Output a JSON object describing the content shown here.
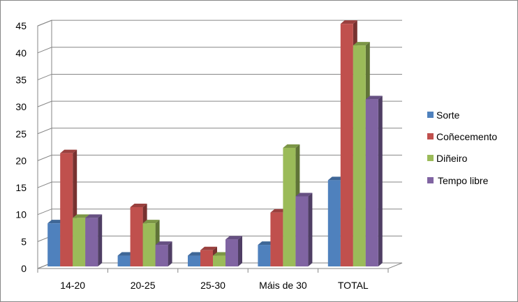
{
  "chart_data": {
    "type": "bar",
    "categories": [
      "14-20",
      "20-25",
      "25-30",
      "Máis de 30",
      "TOTAL"
    ],
    "series": [
      {
        "name": "Sorte",
        "values": [
          8,
          2,
          2,
          4,
          16
        ],
        "color": "#4F81BD"
      },
      {
        "name": "Coñecemento",
        "values": [
          21,
          11,
          3,
          10,
          45
        ],
        "color": "#C0504D"
      },
      {
        "name": "Diñeiro",
        "values": [
          9,
          8,
          2,
          22,
          41
        ],
        "color": "#9BBB59"
      },
      {
        "name": "Tempo libre",
        "values": [
          9,
          4,
          5,
          13,
          31
        ],
        "color": "#8064A2"
      }
    ],
    "ylim": [
      0,
      45
    ],
    "yticks": [
      0,
      5,
      10,
      15,
      20,
      25,
      30,
      35,
      40,
      45
    ],
    "grid": true,
    "three_d": true,
    "legend_position": "right",
    "title": "",
    "xlabel": "",
    "ylabel": ""
  }
}
